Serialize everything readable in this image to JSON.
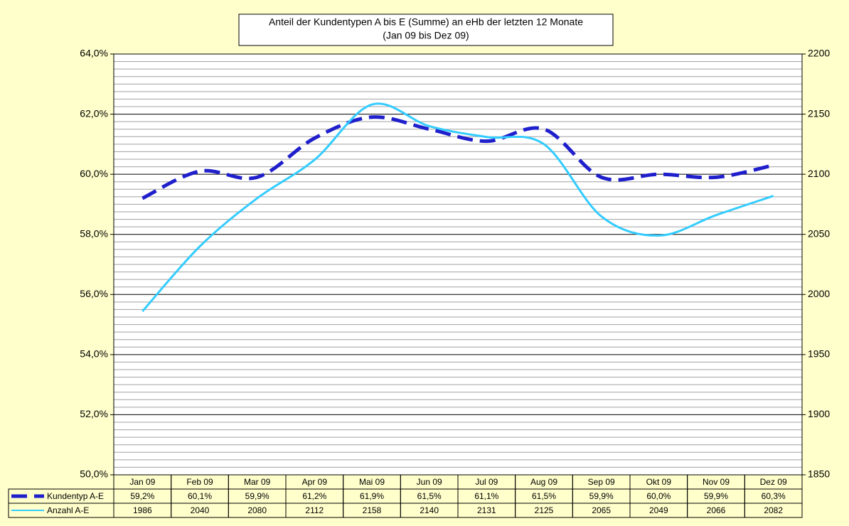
{
  "chart_data": {
    "type": "line",
    "title": "Anteil der Kundentypen A bis E (Summe) an eHb der letzten 12 Monate",
    "subtitle": "(Jan 09 bis Dez 09)",
    "categories": [
      "Jan 09",
      "Feb 09",
      "Mar 09",
      "Apr 09",
      "Mai 09",
      "Jun 09",
      "Jul 09",
      "Aug 09",
      "Sep 09",
      "Okt 09",
      "Nov 09",
      "Dez 09"
    ],
    "series": [
      {
        "name": "Kundentyp A-E",
        "color": "#1f1fcc",
        "dashed": true,
        "values": [
          59.2,
          60.1,
          59.9,
          61.2,
          61.9,
          61.5,
          61.1,
          61.5,
          59.9,
          60.0,
          59.9,
          60.3
        ],
        "value_labels": [
          "59,2%",
          "60,1%",
          "59,9%",
          "61,2%",
          "61,9%",
          "61,5%",
          "61,1%",
          "61,5%",
          "59,9%",
          "60,0%",
          "59,9%",
          "60,3%"
        ]
      },
      {
        "name": "Anzahl A-E",
        "color": "#33ccff",
        "axis": "y2",
        "values": [
          1986,
          2040,
          2080,
          2112,
          2158,
          2140,
          2131,
          2125,
          2065,
          2049,
          2066,
          2082
        ]
      }
    ],
    "ylim": [
      50,
      64
    ],
    "yticks": [
      {
        "value": 50,
        "label": "50,0%"
      },
      {
        "value": 52,
        "label": "52,0%"
      },
      {
        "value": 54,
        "label": "54,0%"
      },
      {
        "value": 56,
        "label": "56,0%"
      },
      {
        "value": 58,
        "label": "58,0%"
      },
      {
        "value": 60,
        "label": "60,0%"
      },
      {
        "value": 62,
        "label": "62,0%"
      },
      {
        "value": 64,
        "label": "64,0%"
      }
    ],
    "y2lim": [
      1850,
      2200
    ],
    "y2ticks": [
      1850,
      1900,
      1950,
      2000,
      2050,
      2100,
      2150,
      2200
    ],
    "grid": true,
    "smooth": true,
    "data_table": true
  }
}
